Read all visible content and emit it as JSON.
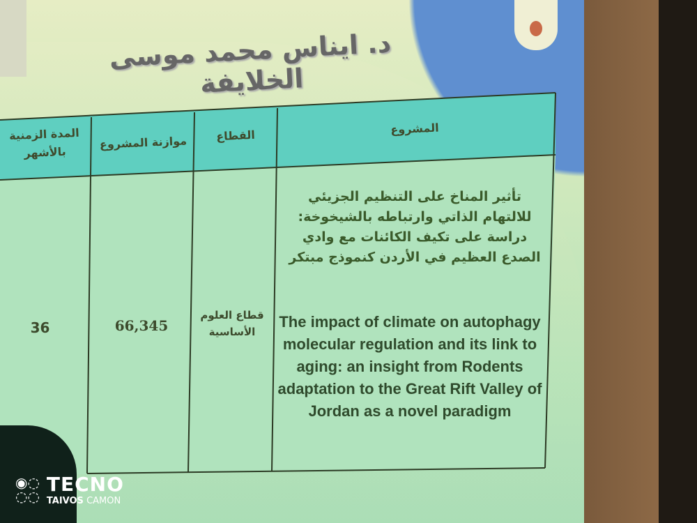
{
  "slide": {
    "title": "د. ايناس محمد موسى الخلايفة",
    "table": {
      "headers": [
        "المشروع",
        "القطاع",
        "موازنة المشروع",
        "المدة الزمنية بالأشهر"
      ],
      "rows": [
        {
          "project_ar": "تأثير المناخ على التنظيم الجزيئي للالتهام الذاتي وارتباطه بالشيخوخة: دراسة على تكيف الكائنات مع وادي الصدع العظيم في الأردن كنموذج مبتكر",
          "project_en": "The impact of climate on autophagy molecular regulation and its link to aging: an insight from Rodents adaptation to the Great Rift Valley of Jordan as a novel paradigm",
          "sector": "قطاع العلوم الأساسية",
          "budget": "66,345",
          "duration_months": "36"
        }
      ]
    },
    "colors": {
      "header_fill": "#5fcfc0",
      "body_fill": "#b0e3bd",
      "border": "#2c3a24"
    }
  },
  "watermark": {
    "brand": "TECNO",
    "line2": "TAIVOS",
    "line3": "CAMON"
  }
}
